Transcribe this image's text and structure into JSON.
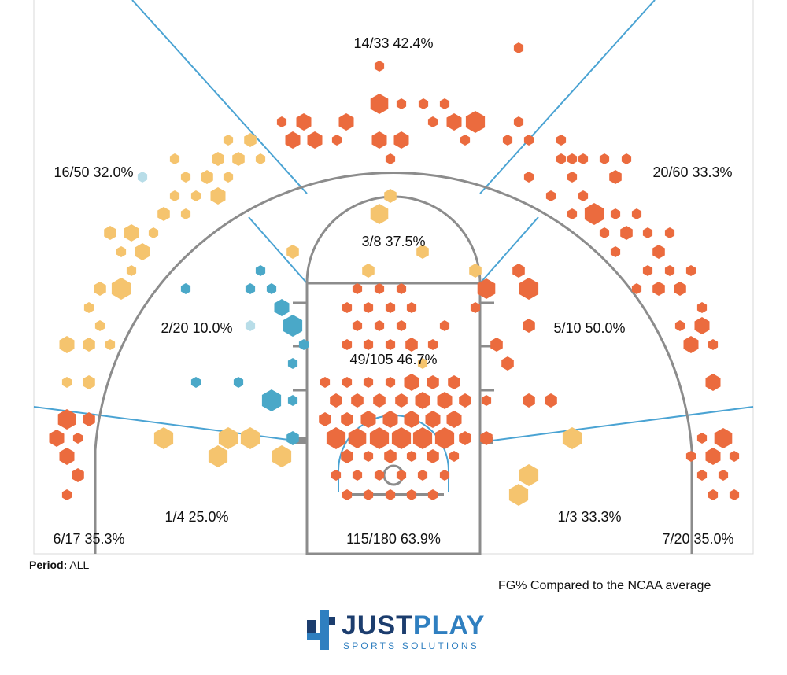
{
  "period": {
    "label": "Period:",
    "value": "ALL"
  },
  "comparison_note": "FG% Compared to the NCAA average",
  "logo": {
    "word1": "JUST",
    "word2": "PLAY",
    "tagline": "SPORTS SOLUTIONS",
    "icon": "jp-logo-icon"
  },
  "colors": {
    "court_lines": "#8c8c8c",
    "zone_lines": "#4aa3d3",
    "hot": "#eb6b3e",
    "neutral": "#f5c46e",
    "cold": "#4aa8c8",
    "very_cold": "#b8dde8"
  },
  "chart_data": {
    "type": "scatter",
    "title": "",
    "zones": [
      {
        "id": "top-three",
        "made": 14,
        "attempts": 33,
        "pct": "42.4%",
        "label": "14/33 42.4%"
      },
      {
        "id": "left-wing-three",
        "made": 16,
        "attempts": 50,
        "pct": "32.0%",
        "label": "16/50 32.0%"
      },
      {
        "id": "right-wing-three",
        "made": 20,
        "attempts": 60,
        "pct": "33.3%",
        "label": "20/60 33.3%"
      },
      {
        "id": "top-midrange",
        "made": 3,
        "attempts": 8,
        "pct": "37.5%",
        "label": "3/8 37.5%"
      },
      {
        "id": "left-midrange",
        "made": 2,
        "attempts": 20,
        "pct": "10.0%",
        "label": "2/20 10.0%"
      },
      {
        "id": "right-midrange",
        "made": 5,
        "attempts": 10,
        "pct": "50.0%",
        "label": "5/10 50.0%"
      },
      {
        "id": "paint",
        "made": 49,
        "attempts": 105,
        "pct": "46.7%",
        "label": "49/105 46.7%"
      },
      {
        "id": "left-baseline-midrange",
        "made": 1,
        "attempts": 4,
        "pct": "25.0%",
        "label": "1/4 25.0%"
      },
      {
        "id": "right-baseline-midrange",
        "made": 1,
        "attempts": 3,
        "pct": "33.3%",
        "label": "1/3 33.3%"
      },
      {
        "id": "left-corner-three",
        "made": 6,
        "attempts": 17,
        "pct": "35.3%",
        "label": "6/17 35.3%"
      },
      {
        "id": "right-corner-three",
        "made": 7,
        "attempts": 20,
        "pct": "35.0%",
        "label": "7/20 35.0%"
      },
      {
        "id": "restricted-area",
        "made": 115,
        "attempts": 180,
        "pct": "63.9%",
        "label": "115/180 63.9%"
      }
    ]
  }
}
